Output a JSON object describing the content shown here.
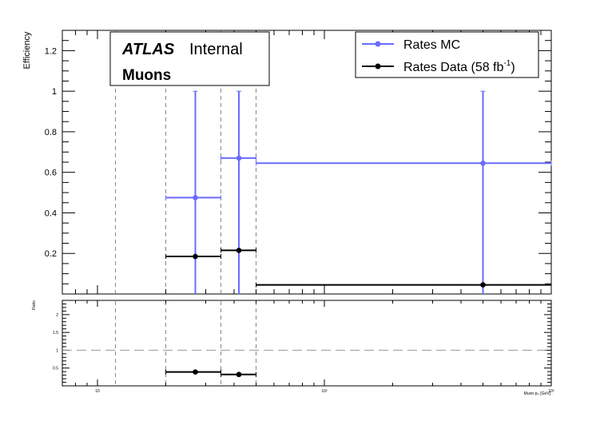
{
  "chart_data": [
    {
      "type": "scatter",
      "panel": "main",
      "ylabel": "Efficiency",
      "xscale": "log",
      "xlim": [
        7,
        1000
      ],
      "ylim": [
        0,
        1.3
      ],
      "yticks": [
        0.2,
        0.4,
        0.6,
        0.8,
        1,
        1.2
      ],
      "ytick_labels": [
        "0.2",
        "0.4",
        "0.6",
        "0.8",
        "1",
        "1.2"
      ],
      "xtick_labels": [
        "10",
        "10²",
        "10³"
      ],
      "bin_edges_dashed": [
        12,
        20,
        35,
        50
      ],
      "annotation": {
        "atlas": "ATLAS",
        "status": "Internal",
        "label": "Muons"
      },
      "legend_position": "top-right",
      "series": [
        {
          "name": "Rates MC",
          "color": "#6b6bff",
          "points": [
            {
              "x": 27,
              "xlo": 20,
              "xhi": 35,
              "y": 0.475,
              "ylo": 0,
              "yhi": 1.0
            },
            {
              "x": 42,
              "xlo": 35,
              "xhi": 50,
              "y": 0.67,
              "ylo": 0,
              "yhi": 1.0
            },
            {
              "x": 500,
              "xlo": 50,
              "xhi": 1000,
              "y": 0.645,
              "ylo": 0,
              "yhi": 1.0
            }
          ]
        },
        {
          "name": "Rates Data (58 fb",
          "name_sup": "-1",
          "name_end": ")",
          "color": "#000000",
          "points": [
            {
              "x": 27,
              "xlo": 20,
              "xhi": 35,
              "y": 0.185
            },
            {
              "x": 42,
              "xlo": 35,
              "xhi": 50,
              "y": 0.215
            },
            {
              "x": 500,
              "xlo": 50,
              "xhi": 1000,
              "y": 0.045
            }
          ]
        }
      ]
    },
    {
      "type": "scatter",
      "panel": "ratio",
      "ylabel": "Ratio",
      "xlabel": "Muon p",
      "xlabel_sub": "T",
      "xlabel_unit": " [GeV]",
      "xscale": "log",
      "xlim": [
        7,
        1000
      ],
      "ylim": [
        0,
        2.4
      ],
      "yticks": [
        0.5,
        1,
        1.5,
        2
      ],
      "ytick_labels": [
        "0.5",
        "1",
        "1.5",
        "2"
      ],
      "reference_line": 1,
      "series": [
        {
          "name": "",
          "color": "#000000",
          "points": [
            {
              "x": 27,
              "xlo": 20,
              "xhi": 35,
              "y": 0.39
            },
            {
              "x": 42,
              "xlo": 35,
              "xhi": 50,
              "y": 0.32
            }
          ]
        }
      ]
    }
  ]
}
